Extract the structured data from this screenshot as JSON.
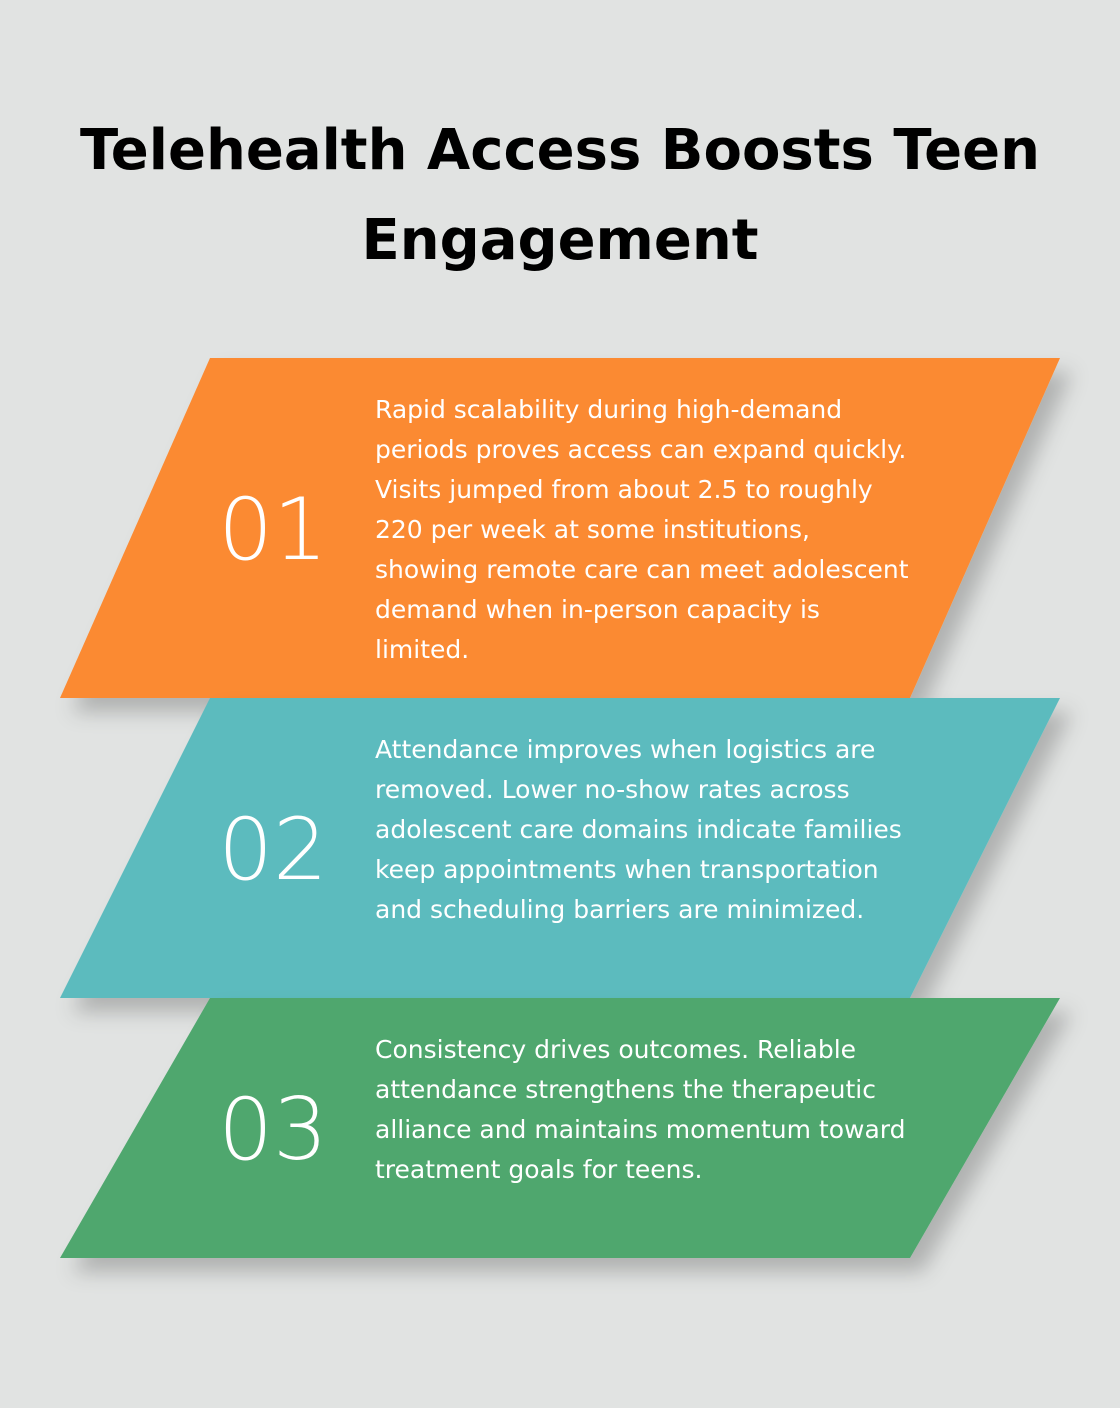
{
  "title": "Telehealth Access Boosts Teen Engagement",
  "items": [
    {
      "number": "01",
      "color": "#fb8a33",
      "text": "Rapid scalability during high-demand periods proves access can expand quickly. Visits jumped from about 2.5 to roughly 220 per week at some institutions, showing remote care can meet adolescent demand when in-person capacity is limited."
    },
    {
      "number": "02",
      "color": "#5bbbbe",
      "text": "Attendance improves when logistics are removed. Lower no-show rates across adolescent care domains indicate families keep appointments when transportation and scheduling barriers are minimized."
    },
    {
      "number": "03",
      "color": "#4fa76e",
      "text": "Consistency drives outcomes. Reliable attendance strengthens the therapeutic alliance and maintains momentum toward treatment goals for teens."
    }
  ]
}
